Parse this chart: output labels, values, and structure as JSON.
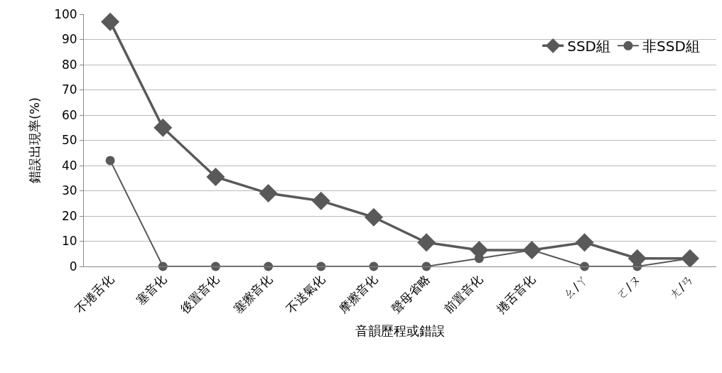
{
  "chart_data": {
    "type": "line",
    "xlabel": "音韻歷程或錯誤",
    "ylabel": "錯誤出現率(%)",
    "categories": [
      "不捲舌化",
      "塞音化",
      "後置音化",
      "塞擦音化",
      "不送氣化",
      "摩擦音化",
      "聲母省略",
      "前置音化",
      "捲舌音化",
      "ㄠ/ㄚ",
      "ㄛ/ㄡ",
      "ㄤ/ㄢ"
    ],
    "series": [
      {
        "name": "SSD組",
        "color": "#595959",
        "marker": "diamond",
        "values": [
          97,
          55,
          35.5,
          29,
          26,
          19.5,
          9.5,
          6.5,
          6.5,
          9.5,
          3.2,
          3.2
        ]
      },
      {
        "name": "非SSD組",
        "color": "#595959",
        "marker": "circle",
        "values": [
          42,
          0,
          0,
          0,
          0,
          0,
          0,
          3.2,
          6.5,
          0,
          0,
          3.2
        ]
      }
    ],
    "ylim": [
      0,
      100
    ],
    "yticks": [
      0,
      10,
      20,
      30,
      40,
      50,
      60,
      70,
      80,
      90,
      100
    ],
    "grid": "y",
    "legend": "top right",
    "line_style": "solid"
  }
}
